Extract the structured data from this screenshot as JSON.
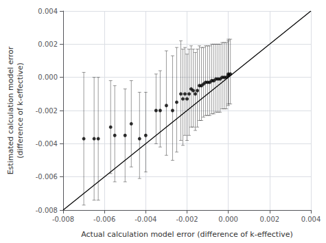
{
  "chart_data": {
    "type": "scatter",
    "xlabel": "Actual calculation model error (difference of k-effective)",
    "ylabel": "Estimated calculation model error\n(difference of k-effective)",
    "xlim": [
      -0.008,
      0.004
    ],
    "ylim": [
      -0.008,
      0.004
    ],
    "xticks": [
      -0.008,
      -0.006,
      -0.004,
      -0.002,
      {
        "value": 0,
        "label": "0.000"
      },
      0.002,
      0.004
    ],
    "yticks": [
      -0.008,
      -0.006,
      -0.004,
      -0.002,
      {
        "value": 0,
        "label": "0.000"
      },
      0.002,
      0.004
    ],
    "grid": true,
    "series": [
      {
        "type": "line",
        "color": "#000000",
        "line_style": "solid",
        "x": [
          -0.008,
          0.004
        ],
        "values": [
          -0.008,
          0.004
        ]
      },
      {
        "type": "scatter",
        "color": "#000000",
        "marker": "circle",
        "x": [
          -0.007,
          -0.0065,
          -0.0063,
          -0.0057,
          -0.0055,
          -0.005,
          -0.0047,
          -0.0043,
          -0.004,
          -0.0035,
          -0.0033,
          -0.003,
          -0.0027,
          -0.0025,
          -0.0023,
          -0.0022,
          -0.0021,
          -0.002,
          -0.0019,
          -0.0018,
          -0.0017,
          -0.0016,
          -0.0015,
          -0.0014,
          -0.0013,
          -0.0012,
          -0.0011,
          -0.001,
          -0.0009,
          -0.0008,
          -0.0007,
          -0.0006,
          -0.0005,
          -0.0004,
          -0.0003,
          -0.0002,
          -0.0001,
          0.0,
          0.0,
          0.0001
        ],
        "values": [
          -0.0037,
          -0.0037,
          -0.0037,
          -0.003,
          -0.0035,
          -0.0035,
          -0.0028,
          -0.0037,
          -0.0035,
          -0.002,
          -0.002,
          -0.0017,
          -0.002,
          -0.0015,
          -0.001,
          -0.0013,
          -0.001,
          -0.0013,
          -0.001,
          -0.0007,
          -0.0008,
          -0.001,
          -0.0008,
          -0.0005,
          -0.0005,
          -0.0004,
          -0.0003,
          -0.0003,
          -0.0003,
          -0.0002,
          -0.0002,
          -0.0001,
          -0.0001,
          -0.0001,
          0.0,
          0.0,
          0.0,
          0.0001,
          0.0002,
          0.0002
        ],
        "yerr_lo": [
          0.004,
          0.0037,
          0.0037,
          0.0028,
          0.0028,
          0.0028,
          0.0026,
          0.0024,
          0.0022,
          0.002,
          0.0022,
          0.003,
          0.003,
          0.003,
          0.0028,
          0.0028,
          0.0025,
          0.0025,
          0.0025,
          0.0023,
          0.0022,
          0.0022,
          0.0022,
          0.0021,
          0.0021,
          0.002,
          0.002,
          0.002,
          0.002,
          0.002,
          0.002,
          0.002,
          0.002,
          0.002,
          0.0019,
          0.0019,
          0.0019,
          0.0018,
          0.0018,
          0.0018
        ],
        "yerr_hi": [
          0.004,
          0.0037,
          0.0037,
          0.0028,
          0.003,
          0.0028,
          0.0026,
          0.0028,
          0.0026,
          0.0022,
          0.0024,
          0.0033,
          0.0033,
          0.0033,
          0.0032,
          0.003,
          0.0028,
          0.0027,
          0.0027,
          0.0026,
          0.0025,
          0.0025,
          0.0025,
          0.0024,
          0.0023,
          0.0022,
          0.0022,
          0.0022,
          0.0022,
          0.0022,
          0.0022,
          0.0021,
          0.0021,
          0.0021,
          0.0021,
          0.0021,
          0.0021,
          0.0021,
          0.0021,
          0.0021
        ]
      }
    ]
  }
}
